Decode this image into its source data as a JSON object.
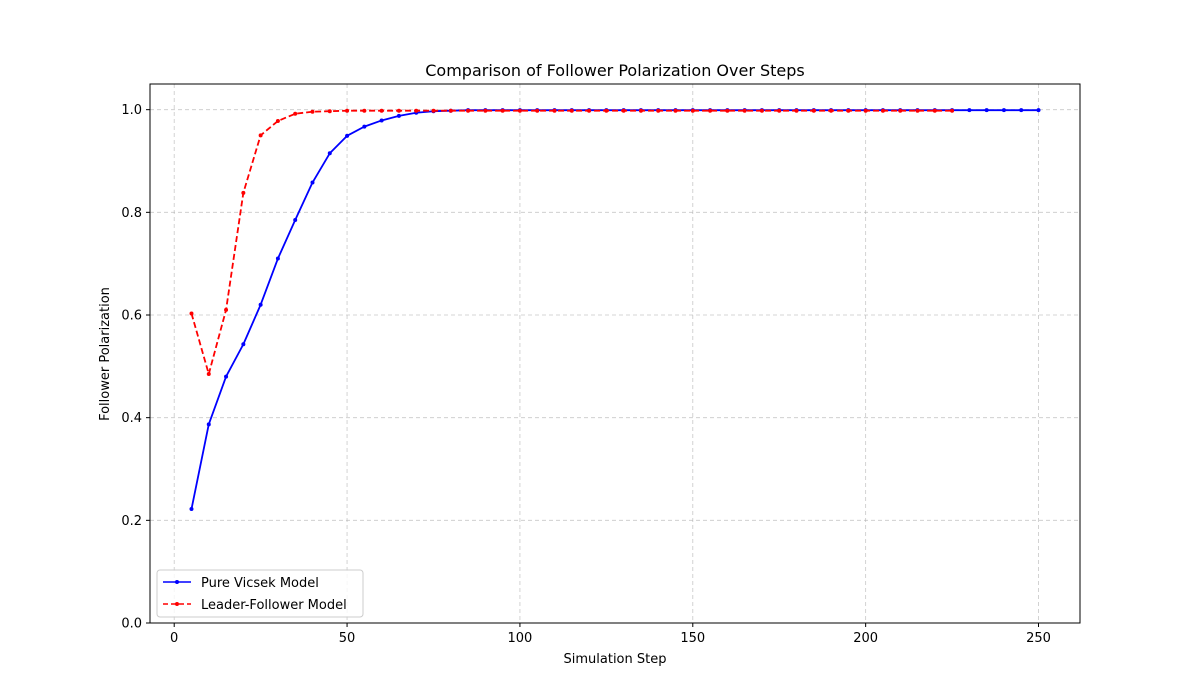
{
  "chart_data": {
    "type": "line",
    "title": "Comparison of Follower Polarization Over Steps",
    "xlabel": "Simulation Step",
    "ylabel": "Follower Polarization",
    "xlim": [
      -7,
      262
    ],
    "ylim": [
      0,
      1.05
    ],
    "xticks": [
      0,
      50,
      100,
      150,
      200,
      250
    ],
    "yticks": [
      0.0,
      0.2,
      0.4,
      0.6,
      0.8,
      1.0
    ],
    "xtick_labels": [
      "0",
      "50",
      "100",
      "150",
      "200",
      "250"
    ],
    "ytick_labels": [
      "0.0",
      "0.2",
      "0.4",
      "0.6",
      "0.8",
      "1.0"
    ],
    "grid": true,
    "legend_position": "lower-left",
    "series": [
      {
        "name": "Pure Vicsek Model",
        "color": "#0000ff",
        "line_style": "solid",
        "marker": "circle",
        "x": [
          5,
          10,
          15,
          20,
          25,
          30,
          35,
          40,
          45,
          50,
          55,
          60,
          65,
          70,
          75,
          80,
          85,
          90,
          95,
          100,
          105,
          110,
          115,
          120,
          125,
          130,
          135,
          140,
          145,
          150,
          155,
          160,
          165,
          170,
          175,
          180,
          185,
          190,
          195,
          200,
          205,
          210,
          215,
          220,
          225,
          230,
          235,
          240,
          245,
          250
        ],
        "y": [
          0.222,
          0.387,
          0.48,
          0.543,
          0.62,
          0.71,
          0.785,
          0.858,
          0.915,
          0.949,
          0.967,
          0.979,
          0.988,
          0.994,
          0.997,
          0.998,
          0.999,
          0.999,
          0.999,
          0.999,
          0.999,
          0.999,
          0.999,
          0.999,
          0.999,
          0.999,
          0.999,
          0.999,
          0.999,
          0.999,
          0.999,
          0.999,
          0.999,
          0.999,
          0.999,
          0.999,
          0.999,
          0.999,
          0.999,
          0.999,
          0.999,
          0.999,
          0.999,
          0.999,
          0.999,
          0.999,
          0.999,
          0.999,
          0.999,
          0.999
        ]
      },
      {
        "name": "Leader-Follower Model",
        "color": "#ff0000",
        "line_style": "dashed",
        "marker": "circle",
        "x": [
          5,
          10,
          15,
          20,
          25,
          30,
          35,
          40,
          45,
          50,
          55,
          60,
          65,
          70,
          75,
          80,
          85,
          90,
          95,
          100,
          105,
          110,
          115,
          120,
          125,
          130,
          135,
          140,
          145,
          150,
          155,
          160,
          165,
          170,
          175,
          180,
          185,
          190,
          195,
          200,
          205,
          210,
          215,
          220,
          225
        ],
        "y": [
          0.603,
          0.485,
          0.61,
          0.838,
          0.95,
          0.978,
          0.992,
          0.996,
          0.997,
          0.998,
          0.998,
          0.998,
          0.998,
          0.998,
          0.998,
          0.998,
          0.998,
          0.998,
          0.998,
          0.998,
          0.998,
          0.998,
          0.998,
          0.998,
          0.998,
          0.998,
          0.998,
          0.998,
          0.998,
          0.998,
          0.998,
          0.998,
          0.998,
          0.998,
          0.998,
          0.998,
          0.998,
          0.998,
          0.998,
          0.998,
          0.998,
          0.998,
          0.998,
          0.998,
          0.998
        ]
      }
    ]
  }
}
